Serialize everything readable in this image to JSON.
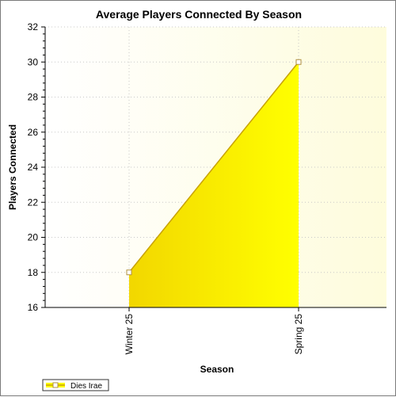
{
  "chart_data": {
    "type": "area",
    "title": "Average Players Connected By Season",
    "xlabel": "Season",
    "ylabel": "Players Connected",
    "categories": [
      "Winter 25",
      "Spring 25"
    ],
    "series": [
      {
        "name": "Dies Irae",
        "values": [
          18,
          30
        ]
      }
    ],
    "ylim": [
      16,
      32
    ],
    "yticks": [
      16,
      18,
      20,
      22,
      24,
      26,
      28,
      30,
      32
    ],
    "grid": true,
    "legend": "bottom-left",
    "colors": {
      "area_fill": "#ffff00",
      "area_fill_dark": "#f2d700",
      "line": "#c8a200",
      "plot_bg_left": "#ffffff",
      "plot_bg_right": "#fefcdc",
      "grid": "#c8c8c8",
      "marker_fill": "#ffffff",
      "marker_stroke": "#b09040"
    }
  }
}
